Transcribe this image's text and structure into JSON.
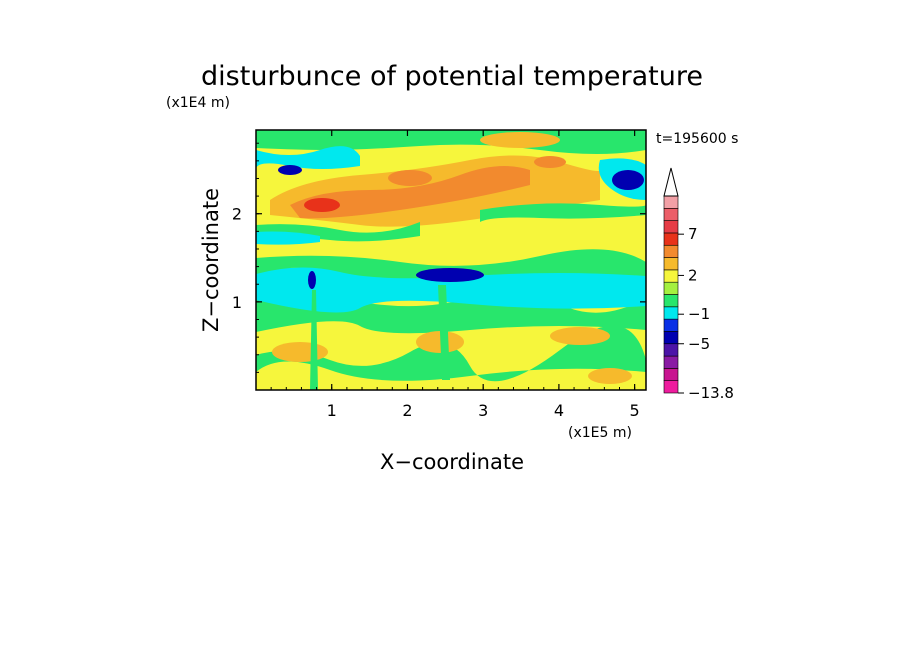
{
  "chart_data": {
    "type": "heatmap",
    "title": "disturbunce of potential temperature",
    "xlabel": "X−coordinate",
    "ylabel": "Z−coordinate",
    "x_unit": "(x1E5 m)",
    "y_unit": "(x1E4 m)",
    "time_label": "t=195600 s",
    "xlim": [
      0,
      5.15
    ],
    "ylim": [
      0,
      2.95
    ],
    "x_ticks": [
      1,
      2,
      3,
      4,
      5
    ],
    "x_tick_labels": [
      "1",
      "2",
      "3",
      "4",
      "5"
    ],
    "y_ticks": [
      1,
      2
    ],
    "y_tick_labels": [
      "1",
      "2"
    ],
    "colorbar": {
      "levels": [
        "−13.8",
        "−5",
        "−1",
        "2",
        "7"
      ],
      "level_values": [
        -13.8,
        -5,
        -1,
        2,
        7
      ],
      "colors": [
        "#ee1c9e",
        "#c81490",
        "#8a1aa4",
        "#4c14a8",
        "#0000b0",
        "#0a30e6",
        "#00e8ee",
        "#28e66c",
        "#a4f040",
        "#f6f63c",
        "#f6ba2c",
        "#f28a2e",
        "#e8321a",
        "#e63c46",
        "#ec5e68",
        "#f2a0a6"
      ],
      "extend_max": true
    },
    "bands": [
      {
        "z_range": [
          0.05,
          0.8
        ],
        "description": "mostly yellow (+0 to +2) with green patches"
      },
      {
        "z_range": [
          0.8,
          1.05
        ],
        "description": "green (near -1 to 0)"
      },
      {
        "z_range": [
          1.05,
          1.35
        ],
        "description": "cyan (-1 to -2)"
      },
      {
        "z_range": [
          1.35,
          1.75
        ],
        "description": "green/yellow mix"
      },
      {
        "z_range": [
          1.75,
          2.45
        ],
        "description": "orange/yellow maximum (+2 to +5), peak near x=0.9"
      },
      {
        "z_range": [
          2.45,
          2.95
        ],
        "description": "yellow/green with blue cores near x=0.4 and x=4.8"
      }
    ]
  }
}
